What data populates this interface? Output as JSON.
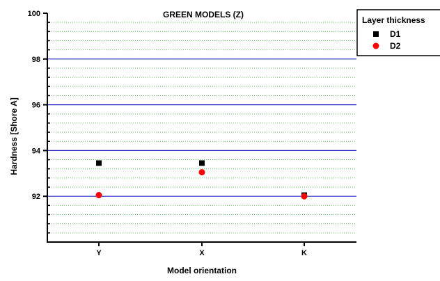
{
  "chart_data": {
    "type": "scatter",
    "title": "GREEN MODELS (Z)",
    "xlabel": "Model orientation",
    "ylabel": "Hardness [Shore A]",
    "categories": [
      "Y",
      "X",
      "K"
    ],
    "ylim": [
      90,
      100
    ],
    "y_major_ticks": [
      92,
      94,
      96,
      98,
      100
    ],
    "y_minor_step": 0.4,
    "grid": {
      "major": true,
      "minor": true
    },
    "legend": {
      "title": "Layer thickness",
      "placement": "top-right-outside"
    },
    "series": [
      {
        "name": "D1",
        "marker": "square",
        "color": "#000000",
        "values": [
          93.45,
          93.45,
          92.05
        ]
      },
      {
        "name": "D2",
        "marker": "circle",
        "color": "#ff0000",
        "values": [
          92.05,
          93.05,
          92.0
        ]
      }
    ],
    "colors": {
      "major_grid": "#2b2bc8",
      "minor_grid": "#66cc66",
      "axis": "#000000"
    }
  }
}
